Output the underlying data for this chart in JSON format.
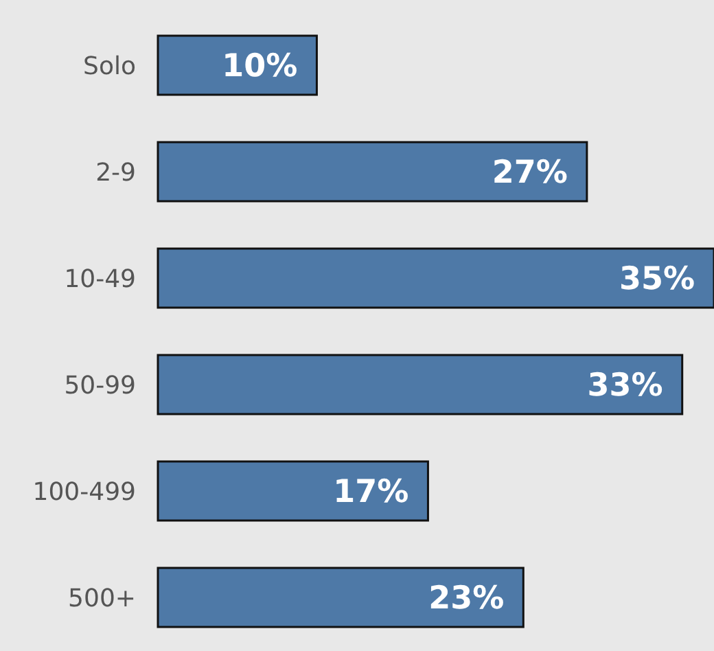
{
  "chart_data": {
    "type": "bar",
    "orientation": "horizontal",
    "categories": [
      "Solo",
      "2-9",
      "10-49",
      "50-99",
      "100-499",
      "500+"
    ],
    "values": [
      10,
      27,
      35,
      33,
      17,
      23
    ],
    "value_labels": [
      "10%",
      "27%",
      "35%",
      "33%",
      "17%",
      "23%"
    ],
    "color": "#4e79a7"
  }
}
